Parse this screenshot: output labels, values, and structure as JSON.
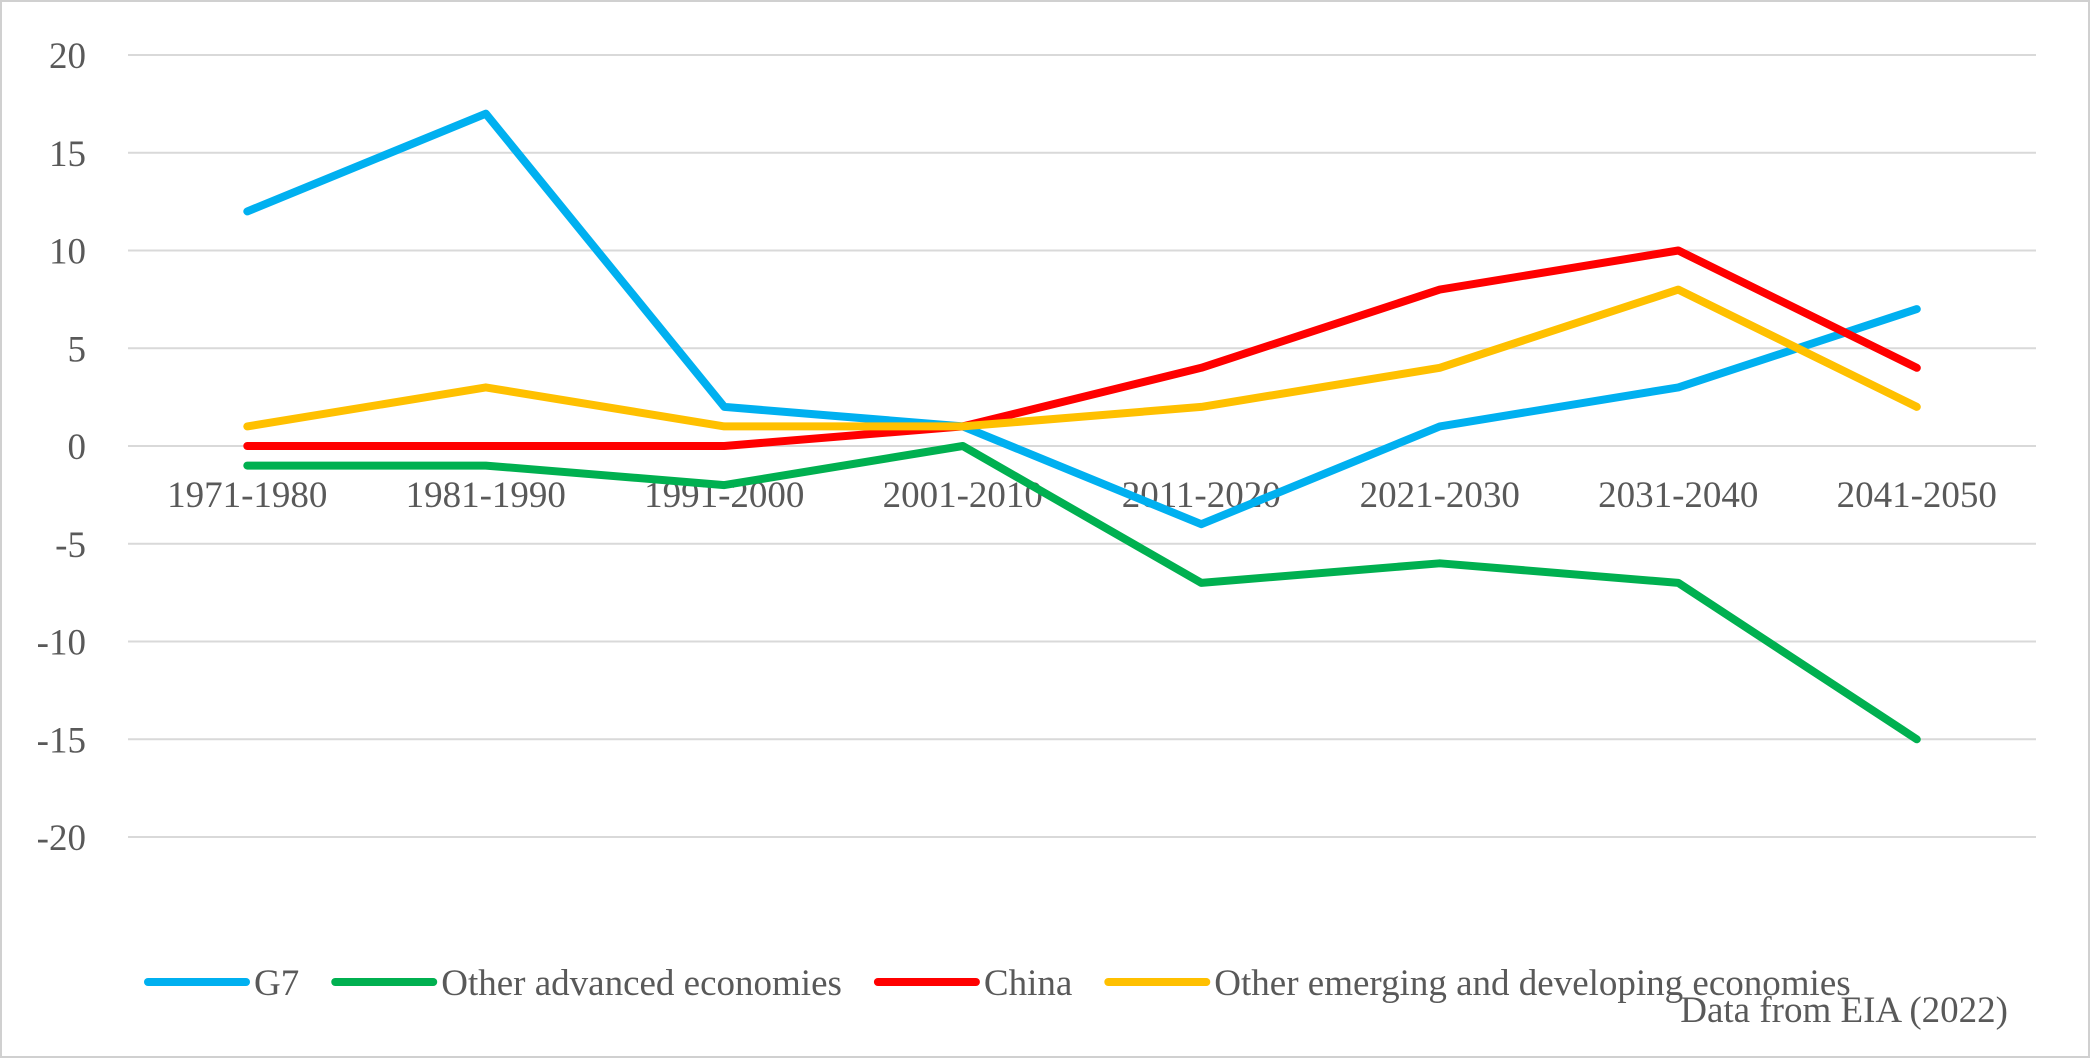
{
  "chart_data": {
    "type": "line",
    "categories": [
      "1971-1980",
      "1981-1990",
      "1991-2000",
      "2001-2010",
      "2011-2020",
      "2021-2030",
      "2031-2040",
      "2041-2050"
    ],
    "ylim": [
      -20,
      20
    ],
    "yticks": [
      20,
      15,
      10,
      5,
      0,
      -5,
      -10,
      -15,
      -20
    ],
    "grid": true,
    "legend_position": "bottom",
    "series": [
      {
        "name": "G7",
        "color": "#00B0F0",
        "values": [
          12,
          17,
          2,
          1,
          -4,
          1,
          3,
          7
        ]
      },
      {
        "name": "Other advanced economies",
        "color": "#00B050",
        "values": [
          -1,
          -1,
          -2,
          0,
          -7,
          -6,
          -7,
          -15
        ]
      },
      {
        "name": "China",
        "color": "#FF0000",
        "values": [
          0,
          0,
          0,
          1,
          4,
          8,
          10,
          4
        ]
      },
      {
        "name": "Other emerging and developing economies",
        "color": "#FFC000",
        "values": [
          1,
          3,
          1,
          1,
          2,
          4,
          8,
          2
        ]
      }
    ],
    "source_note": "Data from EIA (2022)"
  }
}
